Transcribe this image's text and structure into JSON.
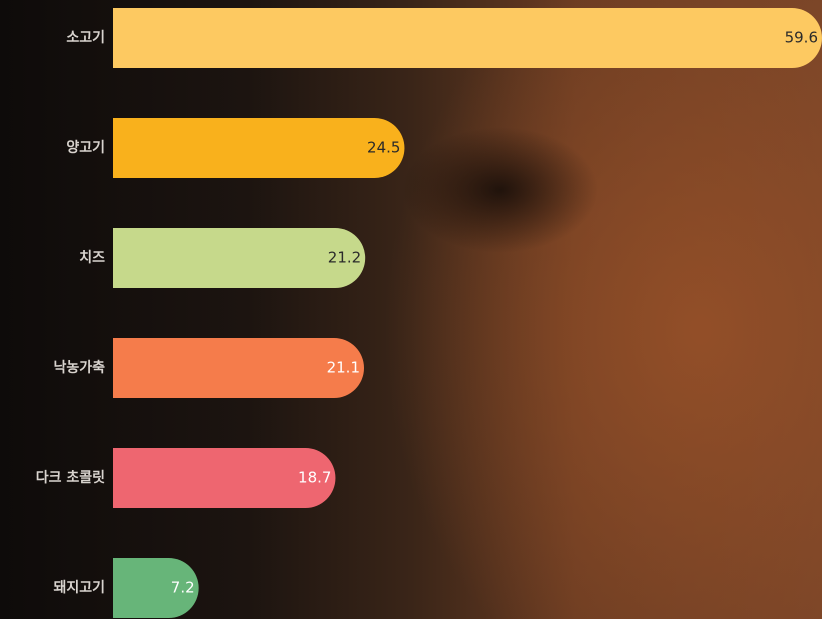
{
  "chart_data": {
    "type": "bar",
    "orientation": "horizontal",
    "categories": [
      "소고기",
      "양고기",
      "치즈",
      "낙농가축",
      "다크 초콜릿",
      "돼지고기"
    ],
    "values": [
      59.6,
      24.5,
      21.2,
      21.1,
      18.7,
      7.2
    ],
    "colors": [
      "#fdc961",
      "#f9b11c",
      "#c6d98b",
      "#f57c4b",
      "#ee6670",
      "#67b579"
    ]
  }
}
